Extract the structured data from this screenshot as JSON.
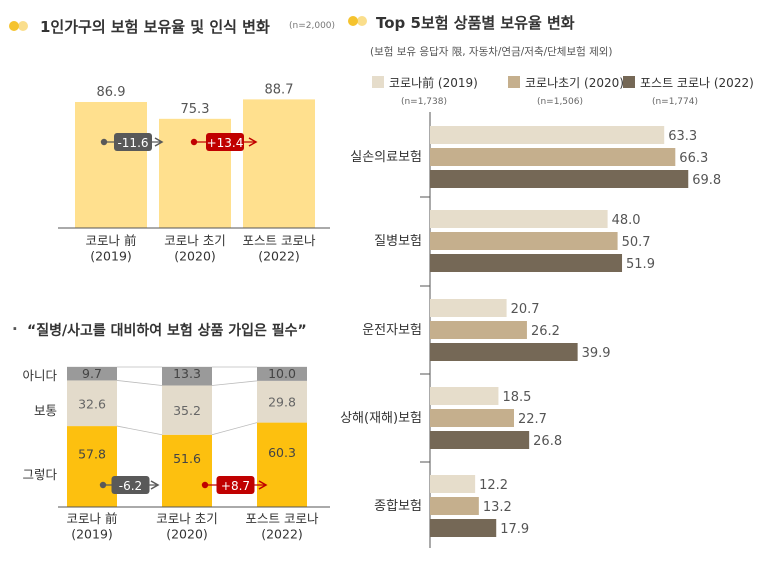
{
  "left": {
    "title": "1인가구의 보험 보유율 및 인식 변화",
    "title_note": "(n=2,000)",
    "sub_title": "“질병/사고를 대비하여 보험 상품 가입은 필수”",
    "sub_bullet": "·"
  },
  "right": {
    "title": "Top 5보험 상품별 보유율 변화",
    "subtitle": "(보험 보유 응답자 限, 자동차/연금/저축/단체보험 제외)"
  },
  "colors": {
    "accent_yellow": "#F5C32E",
    "bar_light_yellow": "#FFE08E",
    "stack_yes": "#FDC00F",
    "stack_neutral": "#E3DBCB",
    "stack_no": "#9A9A9A",
    "bar_2019": "#E6DDCB",
    "bar_2020": "#C5AF8D",
    "bar_2022": "#756856",
    "minus_badge": "#595959",
    "plus_badge": "#C00000"
  },
  "chart_data": [
    {
      "type": "bar",
      "categories": [
        "코로나 前\n(2019)",
        "코로나 초기\n(2020)",
        "포스트 코로나\n(2022)"
      ],
      "values": [
        86.9,
        75.3,
        88.7
      ],
      "ylim": [
        0,
        100
      ],
      "annotations": [
        "-11.6",
        "+13.4"
      ]
    },
    {
      "type": "bar",
      "stacked": true,
      "categories": [
        "코로나 前\n(2019)",
        "코로나 초기\n(2020)",
        "포스트 코로나\n(2022)"
      ],
      "series": [
        {
          "name": "그렇다",
          "values": [
            57.8,
            51.6,
            60.3
          ]
        },
        {
          "name": "보통",
          "values": [
            32.6,
            35.2,
            29.8
          ]
        },
        {
          "name": "아니다",
          "values": [
            9.7,
            13.3,
            10.0
          ]
        }
      ],
      "annotations": [
        "-6.2",
        "+8.7"
      ]
    },
    {
      "type": "bar",
      "orientation": "horizontal",
      "categories": [
        "실손의료보험",
        "질병보험",
        "운전자보험",
        "상해(재해)보험",
        "종합보험"
      ],
      "series": [
        {
          "name": "코로나前 (2019)",
          "n": "(n=1,738)",
          "values": [
            63.3,
            48.0,
            20.7,
            18.5,
            12.2
          ]
        },
        {
          "name": "코로나초기 (2020)",
          "n": "(n=1,506)",
          "values": [
            66.3,
            50.7,
            26.2,
            22.7,
            13.2
          ]
        },
        {
          "name": "포스트 코로나 (2022)",
          "n": "(n=1,774)",
          "values": [
            69.8,
            51.9,
            39.9,
            26.8,
            17.9
          ]
        }
      ],
      "xlim": [
        0,
        80
      ]
    }
  ]
}
